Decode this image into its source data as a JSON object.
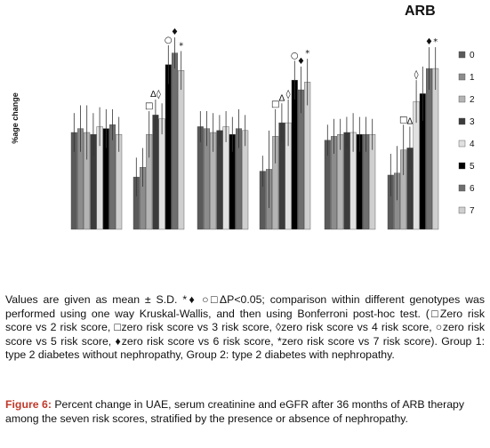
{
  "chart_data": {
    "type": "bar",
    "title": "ARB",
    "ylabel": "%age change",
    "xlabel": "",
    "ylim": [
      0,
      100
    ],
    "grid": false,
    "legend_position": "right",
    "series": [
      {
        "name": "0",
        "color": "#5a5a5a"
      },
      {
        "name": "1",
        "color": "#8c8c8c"
      },
      {
        "name": "2",
        "color": "#b4b4b4"
      },
      {
        "name": "3",
        "color": "#3c3c3c"
      },
      {
        "name": "4",
        "color": "#e0e0e0"
      },
      {
        "name": "5",
        "color": "#000000"
      },
      {
        "name": "6",
        "color": "#6e6e6e"
      },
      {
        "name": "7",
        "color": "#cfcfcf"
      }
    ],
    "groups": [
      {
        "values": [
          50,
          52,
          50,
          49,
          53,
          52,
          54,
          49
        ],
        "errors": [
          10,
          12,
          14,
          11,
          10,
          10,
          8,
          9
        ],
        "markers": [
          "",
          "",
          "",
          "",
          "",
          "",
          "",
          ""
        ]
      },
      {
        "values": [
          27,
          32,
          49,
          59,
          57,
          85,
          91,
          82
        ],
        "errors": [
          10,
          10,
          12,
          8,
          8,
          10,
          8,
          10
        ],
        "markers": [
          "",
          "",
          "□",
          "Δ◊",
          "",
          "○",
          "♦",
          "*"
        ]
      },
      {
        "values": [
          53,
          52,
          50,
          51,
          53,
          49,
          52,
          51
        ],
        "errors": [
          8,
          9,
          10,
          8,
          8,
          9,
          10,
          8
        ],
        "markers": [
          "",
          "",
          "",
          "",
          "",
          "",
          "",
          ""
        ]
      },
      {
        "values": [
          30,
          31,
          48,
          55,
          55,
          77,
          72,
          76
        ],
        "errors": [
          8,
          20,
          14,
          10,
          12,
          10,
          12,
          12
        ],
        "markers": [
          "",
          "",
          "□",
          "Δ",
          "◊",
          "○",
          "♦",
          "*"
        ]
      },
      {
        "values": [
          46,
          48,
          49,
          50,
          50,
          49,
          49,
          49
        ],
        "errors": [
          8,
          9,
          8,
          8,
          10,
          9,
          9,
          8
        ],
        "markers": [
          "",
          "",
          "",
          "",
          "",
          "",
          "",
          ""
        ]
      },
      {
        "values": [
          28,
          29,
          41,
          42,
          66,
          70,
          83,
          83
        ],
        "errors": [
          11,
          14,
          13,
          11,
          11,
          14,
          11,
          11
        ],
        "markers": [
          "",
          "",
          "□",
          "Δ",
          "◊",
          "",
          "♦",
          "*"
        ]
      }
    ]
  },
  "note": "Values are given as mean ± S.D. *♦ ○□ΔP<0.05; comparison within different genotypes was performed using one way Kruskal-Wallis, and then using Bonferroni post-hoc test. (□Zero risk score vs 2 risk score, □zero risk score vs 3 risk score, ◊zero risk score vs 4 risk score, ○zero risk score vs 5 risk score, ♦zero risk score vs 6 risk score, *zero risk score vs 7 risk score). Group 1: type 2 diabetes without nephropathy, Group 2: type 2 diabetes with nephropathy.",
  "caption": {
    "label": "Figure 6:",
    "text": " Percent change in UAE, serum creatinine and eGFR after 36 months of ARB therapy among the seven risk scores, stratified by the presence or absence of nephropathy."
  }
}
